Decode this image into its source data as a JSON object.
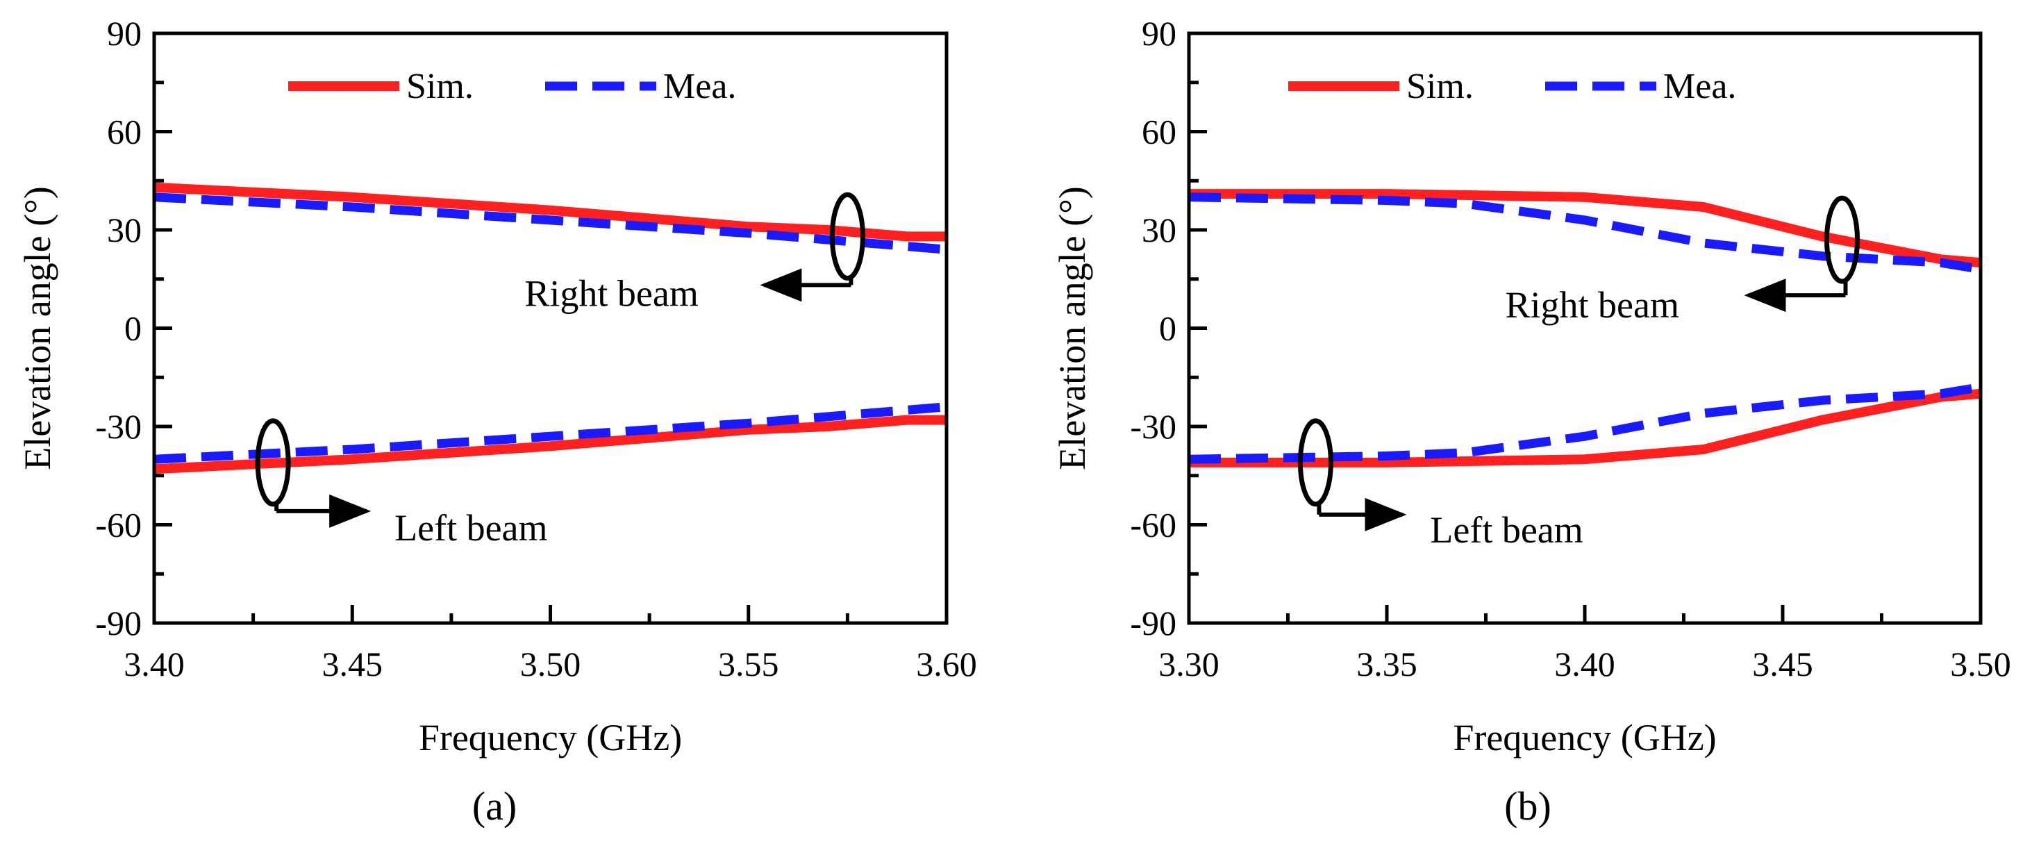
{
  "chart_data": [
    {
      "type": "line",
      "panel_caption": "(a)",
      "xlabel": "Frequency (GHz)",
      "ylabel": "Elevation angle (°)",
      "xlim": [
        3.4,
        3.6
      ],
      "ylim": [
        -90,
        90
      ],
      "xticks": [
        "3.40",
        "3.45",
        "3.50",
        "3.55",
        "3.60"
      ],
      "yticks": [
        "90",
        "60",
        "30",
        "0",
        "-30",
        "-60",
        "-90"
      ],
      "legend": {
        "placement": "top",
        "entries": [
          "Sim.",
          "Mea."
        ]
      },
      "series": [
        {
          "name": "Sim.",
          "color": "#ff2020",
          "style": "solid",
          "x": [
            3.4,
            3.45,
            3.5,
            3.52,
            3.55,
            3.57,
            3.59,
            3.6
          ],
          "y": [
            43,
            40,
            36,
            34,
            31,
            30,
            28,
            28
          ]
        },
        {
          "name": "Mea.",
          "color": "#1a1aff",
          "style": "dashed",
          "x": [
            3.4,
            3.45,
            3.5,
            3.55,
            3.6
          ],
          "y": [
            40,
            37,
            33,
            29,
            24
          ]
        },
        {
          "name": "Sim.",
          "color": "#ff2020",
          "style": "solid",
          "x": [
            3.4,
            3.45,
            3.5,
            3.52,
            3.55,
            3.57,
            3.59,
            3.6
          ],
          "y": [
            -43,
            -40,
            -36,
            -34,
            -31,
            -30,
            -28,
            -28
          ]
        },
        {
          "name": "Mea.",
          "color": "#1a1aff",
          "style": "dashed",
          "x": [
            3.4,
            3.45,
            3.5,
            3.55,
            3.6
          ],
          "y": [
            -40,
            -37,
            -33,
            -29,
            -24
          ]
        }
      ],
      "annotations": [
        {
          "text": "Right beam",
          "ellipse_at": [
            3.575,
            28
          ],
          "arrow": "left"
        },
        {
          "text": "Left beam",
          "ellipse_at": [
            3.43,
            -41
          ],
          "arrow": "right"
        }
      ],
      "grid": false
    },
    {
      "type": "line",
      "panel_caption": "(b)",
      "xlabel": "Frequency (GHz)",
      "ylabel": "Elevation angle (°)",
      "xlim": [
        3.3,
        3.5
      ],
      "ylim": [
        -90,
        90
      ],
      "xticks": [
        "3.30",
        "3.35",
        "3.40",
        "3.45",
        "3.50"
      ],
      "yticks": [
        "90",
        "60",
        "30",
        "0",
        "-30",
        "-60",
        "-90"
      ],
      "legend": {
        "placement": "top",
        "entries": [
          "Sim.",
          "Mea."
        ]
      },
      "series": [
        {
          "name": "Sim.",
          "color": "#ff2020",
          "style": "solid",
          "x": [
            3.3,
            3.35,
            3.4,
            3.43,
            3.46,
            3.49,
            3.5
          ],
          "y": [
            41,
            41,
            40,
            37,
            28,
            21,
            20
          ]
        },
        {
          "name": "Mea.",
          "color": "#1a1aff",
          "style": "dashed",
          "x": [
            3.3,
            3.35,
            3.37,
            3.4,
            3.43,
            3.46,
            3.49,
            3.5
          ],
          "y": [
            40,
            39,
            38,
            33,
            26,
            22,
            20,
            18
          ]
        },
        {
          "name": "Sim.",
          "color": "#ff2020",
          "style": "solid",
          "x": [
            3.3,
            3.35,
            3.4,
            3.43,
            3.46,
            3.49,
            3.5
          ],
          "y": [
            -41,
            -41,
            -40,
            -37,
            -28,
            -21,
            -20
          ]
        },
        {
          "name": "Mea.",
          "color": "#1a1aff",
          "style": "dashed",
          "x": [
            3.3,
            3.35,
            3.37,
            3.4,
            3.43,
            3.46,
            3.49,
            3.5
          ],
          "y": [
            -40,
            -39,
            -38,
            -33,
            -26,
            -22,
            -20,
            -18
          ]
        }
      ],
      "annotations": [
        {
          "text": "Right beam",
          "ellipse_at": [
            3.465,
            27
          ],
          "arrow": "left"
        },
        {
          "text": "Left beam",
          "ellipse_at": [
            3.332,
            -41
          ],
          "arrow": "right"
        }
      ],
      "grid": false
    }
  ]
}
